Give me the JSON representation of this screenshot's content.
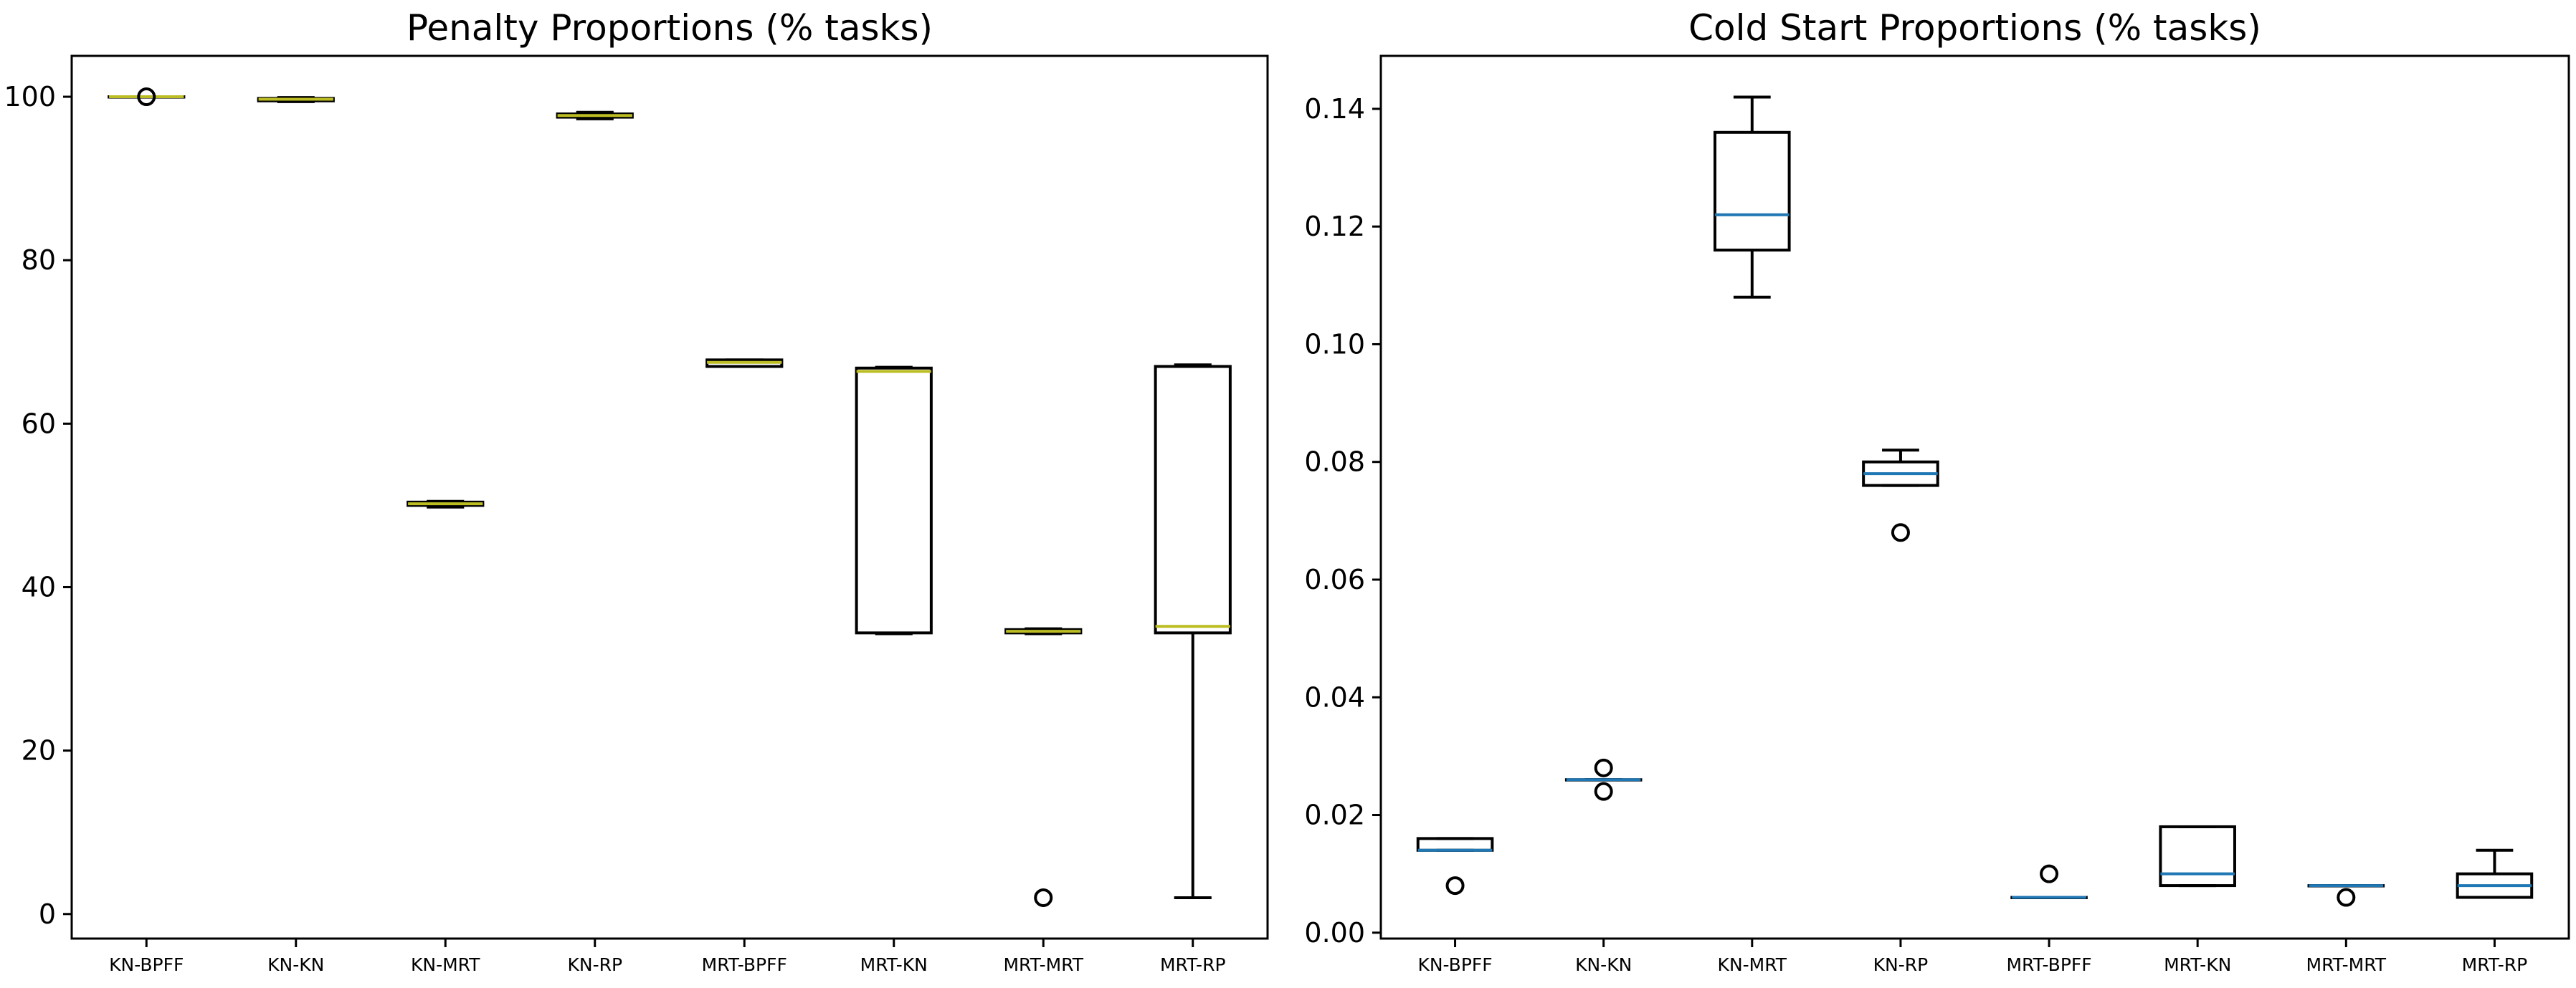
{
  "chart_data": [
    {
      "type": "box",
      "title": "Penalty Proportions (% tasks)",
      "xlabel": "",
      "ylabel": "",
      "ylim": [
        -3,
        105
      ],
      "yticks": [
        0,
        20,
        40,
        60,
        80,
        100
      ],
      "ytick_labels": [
        "0",
        "20",
        "40",
        "60",
        "80",
        "100"
      ],
      "median_color": "#bcbd22",
      "grid": false,
      "categories": [
        "KN-BPFF",
        "KN-KN",
        "KN-MRT",
        "KN-RP",
        "MRT-BPFF",
        "MRT-KN",
        "MRT-MRT",
        "MRT-RP"
      ],
      "boxes": [
        {
          "whislo": 100.0,
          "q1": 100.0,
          "med": 100.0,
          "q3": 100.0,
          "whishi": 100.0,
          "fliers": [
            100.0
          ]
        },
        {
          "whislo": 99.4,
          "q1": 99.5,
          "med": 99.7,
          "q3": 99.8,
          "whishi": 99.9,
          "fliers": []
        },
        {
          "whislo": 49.8,
          "q1": 50.0,
          "med": 50.2,
          "q3": 50.4,
          "whishi": 50.5,
          "fliers": []
        },
        {
          "whislo": 97.3,
          "q1": 97.5,
          "med": 97.7,
          "q3": 97.9,
          "whishi": 98.1,
          "fliers": []
        },
        {
          "whislo": 67.0,
          "q1": 67.0,
          "med": 67.5,
          "q3": 67.8,
          "whishi": 67.8,
          "fliers": []
        },
        {
          "whislo": 34.3,
          "q1": 34.4,
          "med": 66.4,
          "q3": 66.8,
          "whishi": 66.9,
          "fliers": []
        },
        {
          "whislo": 34.3,
          "q1": 34.4,
          "med": 34.6,
          "q3": 34.8,
          "whishi": 34.9,
          "fliers": [
            2.0
          ]
        },
        {
          "whislo": 2.0,
          "q1": 34.4,
          "med": 35.2,
          "q3": 67.0,
          "whishi": 67.2,
          "fliers": []
        }
      ]
    },
    {
      "type": "box",
      "title": "Cold Start Proportions (% tasks)",
      "xlabel": "",
      "ylabel": "",
      "ylim": [
        -0.001,
        0.149
      ],
      "yticks": [
        0.0,
        0.02,
        0.04,
        0.06,
        0.08,
        0.1,
        0.12,
        0.14
      ],
      "ytick_labels": [
        "0.00",
        "0.02",
        "0.04",
        "0.06",
        "0.08",
        "0.10",
        "0.12",
        "0.14"
      ],
      "median_color": "#1f77b4",
      "grid": false,
      "categories": [
        "KN-BPFF",
        "KN-KN",
        "KN-MRT",
        "KN-RP",
        "MRT-BPFF",
        "MRT-KN",
        "MRT-MRT",
        "MRT-RP"
      ],
      "boxes": [
        {
          "whislo": 0.014,
          "q1": 0.014,
          "med": 0.014,
          "q3": 0.016,
          "whishi": 0.016,
          "fliers": [
            0.008
          ]
        },
        {
          "whislo": 0.026,
          "q1": 0.026,
          "med": 0.026,
          "q3": 0.026,
          "whishi": 0.026,
          "fliers": [
            0.028,
            0.024
          ]
        },
        {
          "whislo": 0.108,
          "q1": 0.116,
          "med": 0.122,
          "q3": 0.136,
          "whishi": 0.142,
          "fliers": []
        },
        {
          "whislo": 0.076,
          "q1": 0.076,
          "med": 0.078,
          "q3": 0.08,
          "whishi": 0.082,
          "fliers": [
            0.068
          ]
        },
        {
          "whislo": 0.006,
          "q1": 0.006,
          "med": 0.006,
          "q3": 0.006,
          "whishi": 0.006,
          "fliers": [
            0.01
          ]
        },
        {
          "whislo": 0.008,
          "q1": 0.008,
          "med": 0.01,
          "q3": 0.018,
          "whishi": 0.018,
          "fliers": []
        },
        {
          "whislo": 0.008,
          "q1": 0.008,
          "med": 0.008,
          "q3": 0.008,
          "whishi": 0.008,
          "fliers": [
            0.006
          ]
        },
        {
          "whislo": 0.006,
          "q1": 0.006,
          "med": 0.008,
          "q3": 0.01,
          "whishi": 0.014,
          "fliers": []
        }
      ]
    }
  ]
}
